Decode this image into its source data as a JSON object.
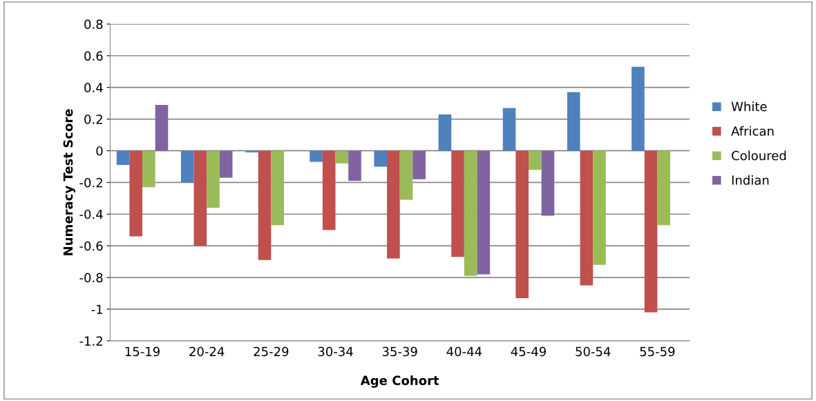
{
  "chart_data": {
    "type": "bar",
    "xlabel": "Age Cohort",
    "ylabel": "Numeracy Test Score",
    "categories": [
      "15-19",
      "20-24",
      "25-29",
      "30-34",
      "35-39",
      "40-44",
      "45-49",
      "50-54",
      "55-59"
    ],
    "series": [
      {
        "name": "White",
        "color": "#4f81bd",
        "values": [
          -0.09,
          -0.2,
          -0.01,
          -0.07,
          -0.1,
          0.23,
          0.27,
          0.37,
          0.53
        ]
      },
      {
        "name": "African",
        "color": "#c0504d",
        "values": [
          -0.54,
          -0.6,
          -0.69,
          -0.5,
          -0.68,
          -0.67,
          -0.93,
          -0.85,
          -1.02
        ]
      },
      {
        "name": "Coloured",
        "color": "#9bbb59",
        "values": [
          -0.23,
          -0.36,
          -0.47,
          -0.08,
          -0.31,
          -0.79,
          -0.12,
          -0.72,
          -0.47
        ]
      },
      {
        "name": "Indian",
        "color": "#8064a2",
        "values": [
          0.29,
          -0.17,
          null,
          -0.19,
          -0.18,
          -0.78,
          -0.41,
          null,
          null
        ]
      }
    ],
    "ylim": [
      -1.2,
      0.8
    ],
    "yticks": [
      {
        "value": -1.2,
        "label": "-1.2"
      },
      {
        "value": -1,
        "label": "-1"
      },
      {
        "value": -0.8,
        "label": "-0.8"
      },
      {
        "value": -0.6,
        "label": "-0.6"
      },
      {
        "value": -0.4,
        "label": "-0.4"
      },
      {
        "value": -0.2,
        "label": "-0.2"
      },
      0,
      0.2,
      0.4,
      0.6,
      0.8
    ],
    "grid": "y",
    "legend": "right"
  }
}
